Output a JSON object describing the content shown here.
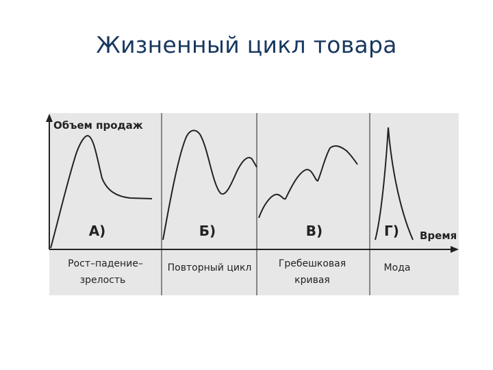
{
  "slide": {
    "title": "Жизненный цикл товара"
  },
  "diagram": {
    "y_axis_label": "Объем продаж",
    "x_axis_label": "Время",
    "panels": [
      {
        "letter": "А)",
        "caption_line1": "Рост–падение–",
        "caption_line2": "зрелость"
      },
      {
        "letter": "Б)",
        "caption_line1": "Повторный цикл",
        "caption_line2": ""
      },
      {
        "letter": "В)",
        "caption_line1": "Гребешковая",
        "caption_line2": "кривая"
      },
      {
        "letter": "Г)",
        "caption_line1": "Мода",
        "caption_line2": ""
      }
    ],
    "colors": {
      "background": "#e7e7e7",
      "curve": "#222222",
      "divider": "#444444",
      "title": "#17375e"
    }
  }
}
